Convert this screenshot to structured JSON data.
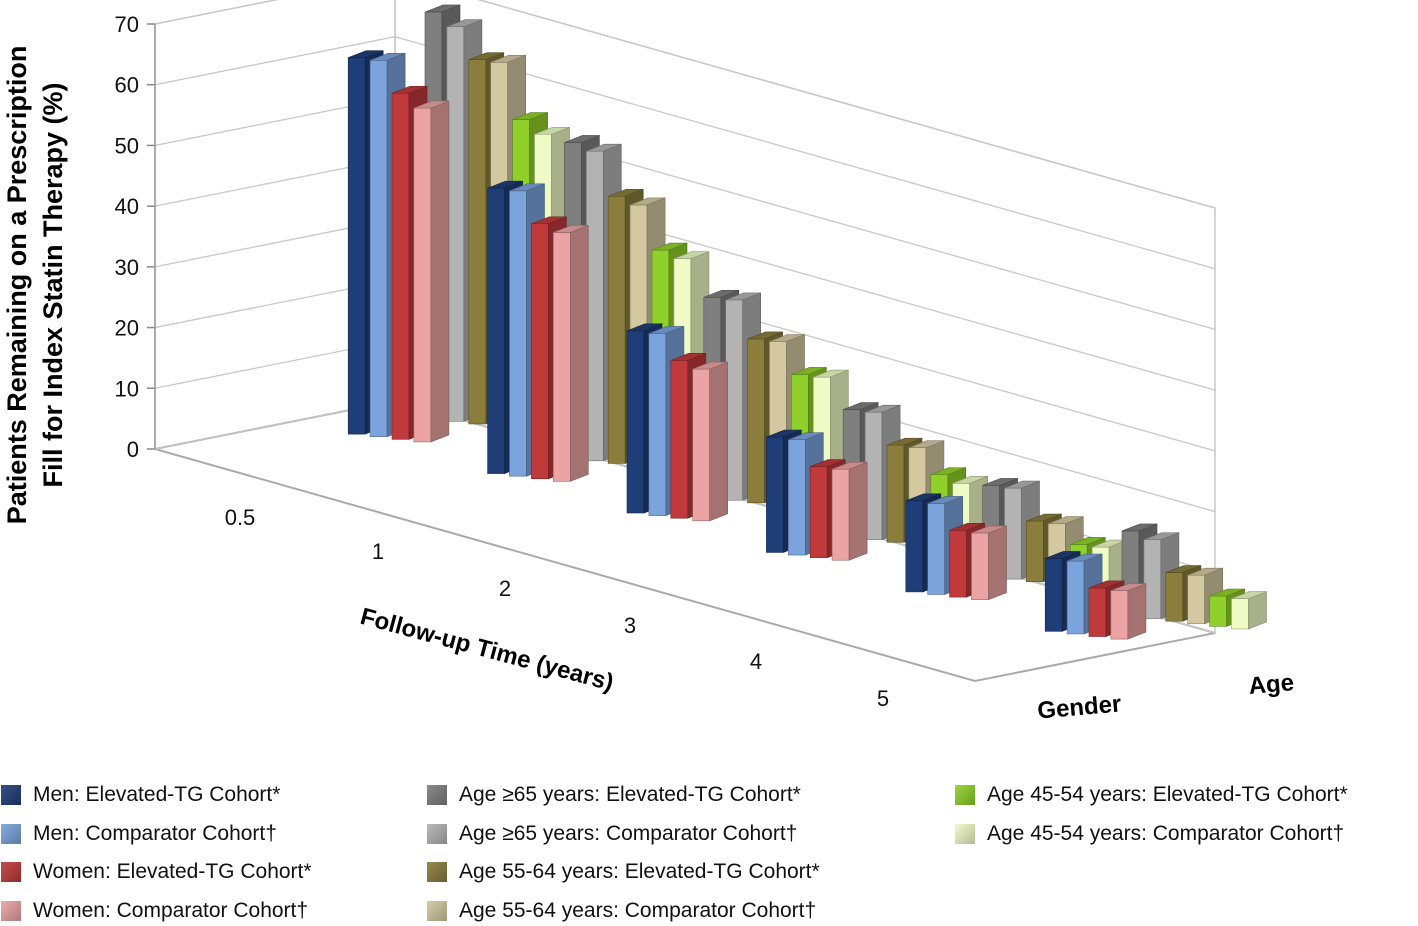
{
  "chart_data": {
    "type": "bar",
    "subtype": "3d-grouped-bar",
    "title": "",
    "ylabel": "Patients Remaining on a Prescription Fill for Index Statin Therapy (%)",
    "ylabel_line1": "Patients Remaining on a Prescription",
    "ylabel_line2": "Fill for Index Statin Therapy (%)",
    "xlabel": "Follow-up Time (years)",
    "ylim": [
      0,
      70
    ],
    "yticks": [
      "0",
      "10",
      "20",
      "30",
      "40",
      "50",
      "60",
      "70"
    ],
    "categories": [
      "0.5",
      "1",
      "2",
      "3",
      "4",
      "5"
    ],
    "groups": [
      "Gender",
      "Age"
    ],
    "series": [
      {
        "name": "Men: Elevated-TG Cohort*",
        "group": "Gender",
        "color": "#1f3e78",
        "values": [
          62,
          47,
          30,
          19,
          15,
          12
        ]
      },
      {
        "name": "Men: Comparator Cohort†",
        "group": "Gender",
        "color": "#7ba3dc",
        "values": [
          62,
          47,
          30,
          19,
          15,
          12
        ]
      },
      {
        "name": "Women: Elevated-TG Cohort*",
        "group": "Gender",
        "color": "#c0393b",
        "values": [
          57,
          42,
          26,
          15,
          11,
          8
        ]
      },
      {
        "name": "Women: Comparator Cohort†",
        "group": "Gender",
        "color": "#eba3a3",
        "values": [
          55,
          41,
          25,
          15,
          11,
          8
        ]
      },
      {
        "name": "Age ≥65 years: Elevated-TG Cohort*",
        "group": "Age",
        "color": "#7f7f7f",
        "values": [
          67,
          52,
          33,
          21,
          15,
          14
        ]
      },
      {
        "name": "Age ≥65 years: Comparator Cohort†",
        "group": "Age",
        "color": "#b3b3b3",
        "values": [
          65,
          51,
          33,
          21,
          15,
          13
        ]
      },
      {
        "name": "Age 55-64 years: Elevated-TG Cohort*",
        "group": "Age",
        "color": "#8b7d3c",
        "values": [
          60,
          44,
          27,
          16,
          10,
          8
        ]
      },
      {
        "name": "Age 55-64 years: Comparator Cohort†",
        "group": "Age",
        "color": "#d4c8a0",
        "values": [
          60,
          43,
          27,
          16,
          10,
          8
        ]
      },
      {
        "name": "Age 45-54 years: Elevated-TG Cohort*",
        "group": "Age",
        "color": "#8fd12a",
        "values": [
          51,
          36,
          22,
          12,
          7,
          5
        ]
      },
      {
        "name": "Age 45-54 years: Comparator Cohort†",
        "group": "Age",
        "color": "#eefbc4",
        "values": [
          49,
          35,
          22,
          11,
          7,
          5
        ]
      }
    ],
    "legend_position": "bottom"
  }
}
